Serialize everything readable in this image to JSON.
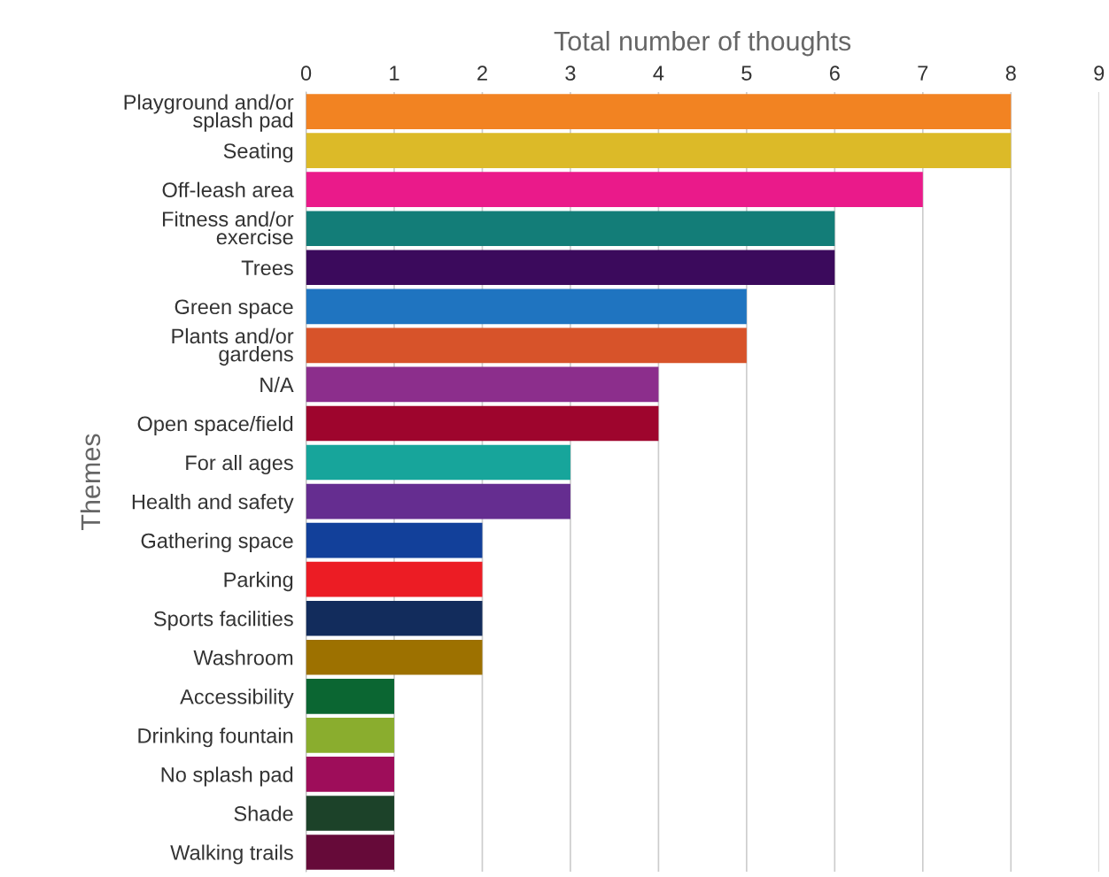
{
  "chart_data": {
    "type": "bar",
    "orientation": "horizontal",
    "xlabel": "Total number of thoughts",
    "ylabel": "Themes",
    "categories": [
      "Playground and/or\nsplash pad",
      "Seating",
      "Off-leash area",
      "Fitness and/or\nexercise",
      "Trees",
      "Green space",
      "Plants and/or\ngardens",
      "N/A",
      "Open space/field",
      "For all ages",
      "Health and safety",
      "Gathering space",
      "Parking",
      "Sports facilities",
      "Washroom",
      "Accessibility",
      "Drinking fountain",
      "No splash pad",
      "Shade",
      "Walking trails"
    ],
    "values": [
      8,
      8,
      7,
      6,
      6,
      5,
      5,
      4,
      4,
      3,
      3,
      2,
      2,
      2,
      2,
      1,
      1,
      1,
      1,
      1
    ],
    "colors": [
      "#f28322",
      "#dcba28",
      "#ea1a8a",
      "#137d78",
      "#3b0a5c",
      "#1f74c0",
      "#d7532a",
      "#8c2e8c",
      "#9e052d",
      "#17a59b",
      "#652d90",
      "#12409a",
      "#ec1c24",
      "#122c5c",
      "#9d7100",
      "#0b6632",
      "#8aad2e",
      "#9e0d5a",
      "#1c4229",
      "#660a39"
    ],
    "xlim": [
      0,
      9
    ],
    "xticks": [
      0,
      1,
      2,
      3,
      4,
      5,
      6,
      7,
      8,
      9
    ],
    "grid": "x",
    "legend": false
  }
}
